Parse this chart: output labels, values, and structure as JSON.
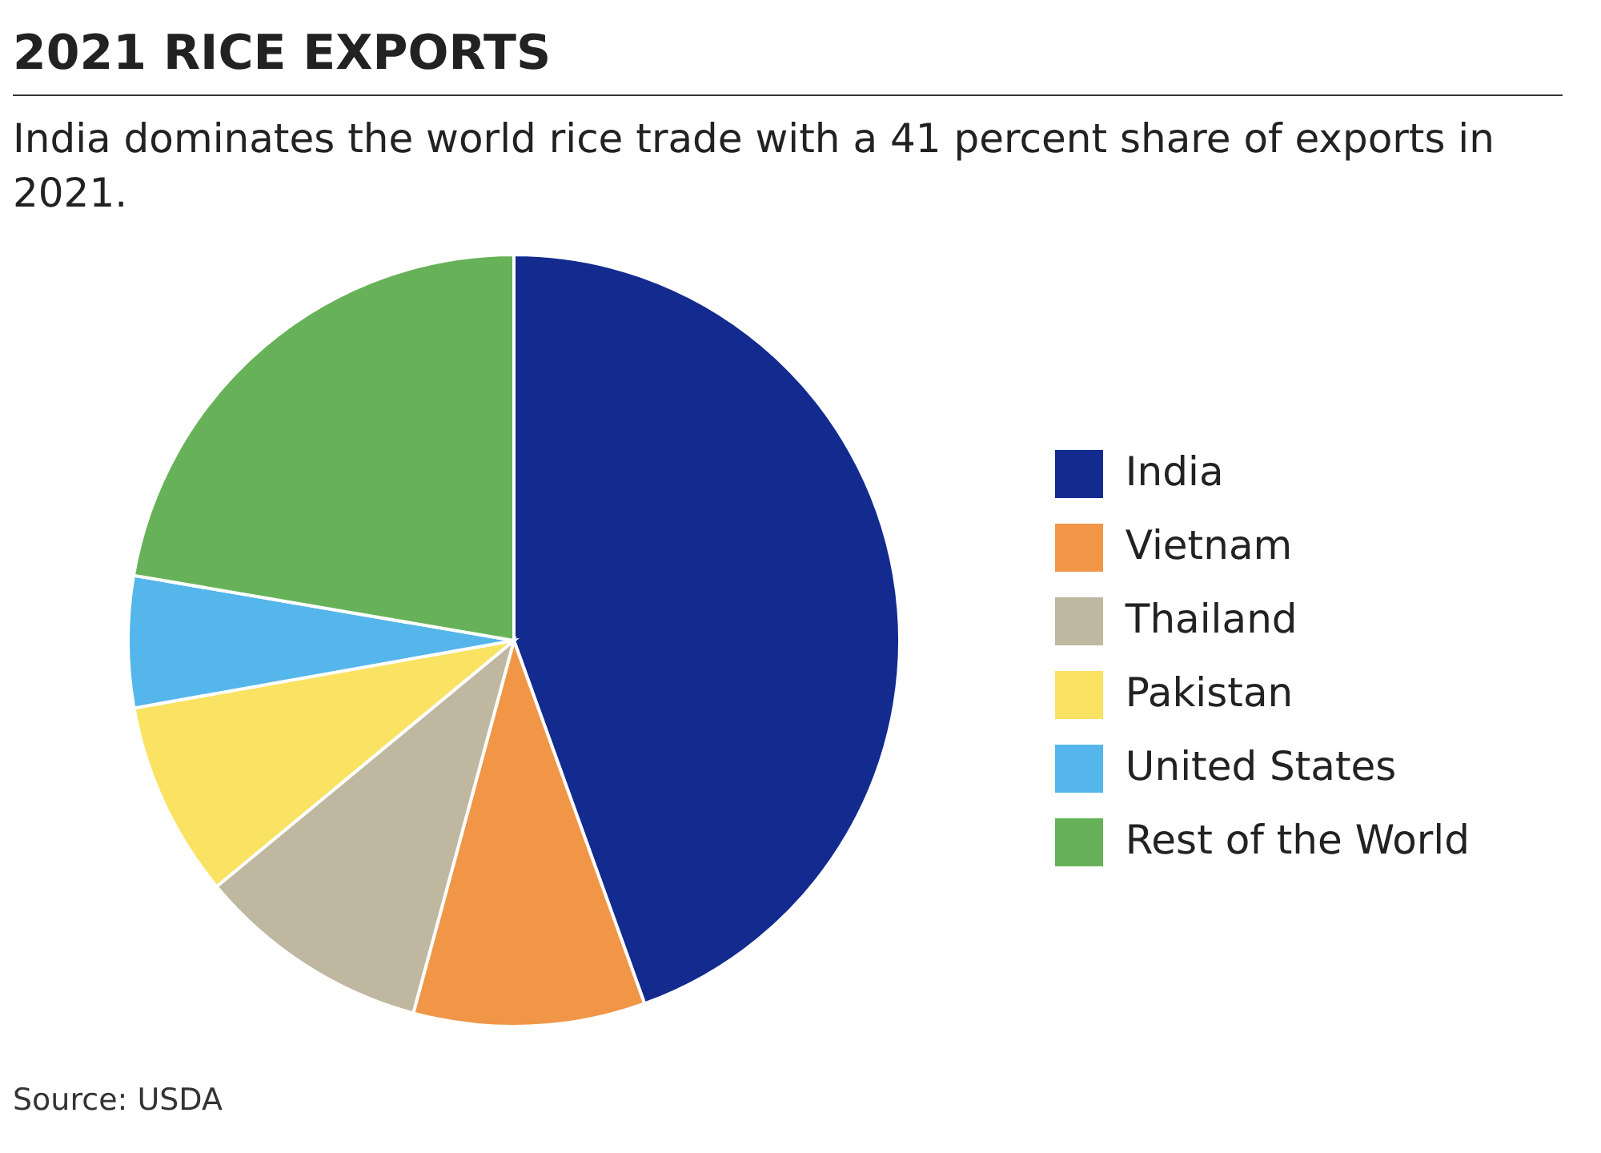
{
  "chart_data": {
    "type": "pie",
    "title": "2021 RICE EXPORTS",
    "subtitle": "India dominates the world rice trade with a 41 percent share of exports in 2021.",
    "categories": [
      "India",
      "Vietnam",
      "Thailand",
      "Pakistan",
      "United States",
      "Rest of the World"
    ],
    "values": [
      44.5,
      9.7,
      9.8,
      8.2,
      5.5,
      22.3
    ],
    "colors": [
      "#132a8f",
      "#f09646",
      "#bfb7a0",
      "#fae262",
      "#55b6ec",
      "#67b259"
    ],
    "legend": "right",
    "annotations": [
      "Source: USDA"
    ]
  }
}
